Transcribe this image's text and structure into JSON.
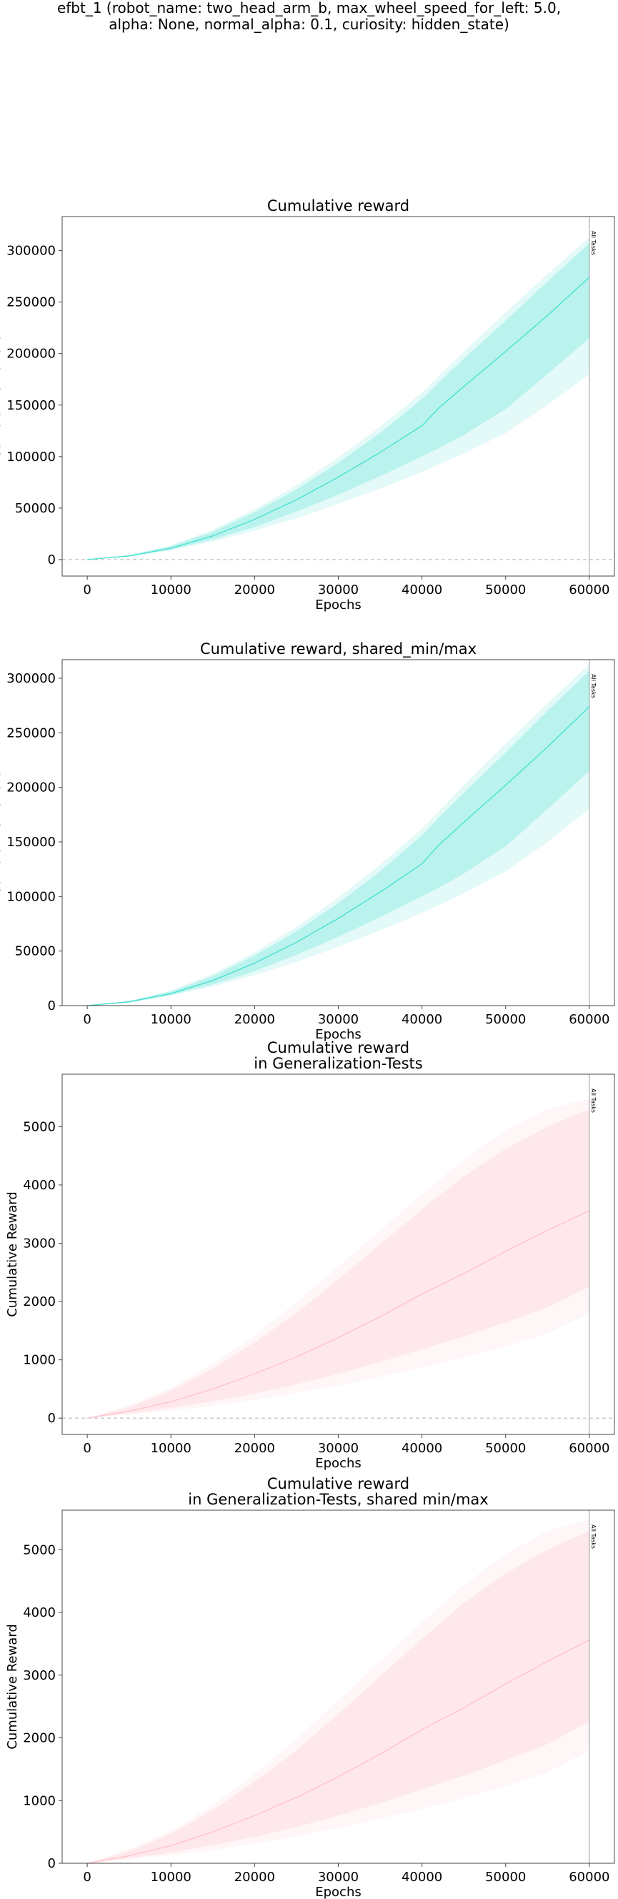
{
  "page": {
    "title_lines": [
      "efbt_1 (robot_name: two_head_arm_b, max_wheel_speed_for_left: 5.0,",
      "alpha: None, normal_alpha: 0.1, curiosity: hidden_state)"
    ]
  },
  "chart_data": [
    {
      "type": "line",
      "title_lines": [
        "Cumulative reward"
      ],
      "xlabel": "Epochs",
      "ylabel": "Cumulative Reward",
      "xlim": [
        -3000,
        63000
      ],
      "ylim": [
        -16000,
        333000
      ],
      "xticks": [
        0,
        10000,
        20000,
        30000,
        40000,
        50000,
        60000
      ],
      "yticks": [
        0,
        50000,
        100000,
        150000,
        200000,
        250000,
        300000
      ],
      "zero_line": true,
      "vline": {
        "x": 60000,
        "label": "All Tasks"
      },
      "color": "#40e0d0",
      "x": [
        0,
        5000,
        10000,
        15000,
        20000,
        25000,
        30000,
        35000,
        40000,
        42000,
        45000,
        50000,
        55000,
        60000
      ],
      "series": [
        {
          "role": "mean",
          "values": [
            0,
            3500,
            11000,
            23000,
            39000,
            58000,
            80000,
            104000,
            130000,
            147000,
            168000,
            202000,
            237000,
            274000
          ]
        },
        {
          "role": "band_inner_upper",
          "values": [
            0,
            4200,
            13000,
            27000,
            46000,
            68000,
            94000,
            123000,
            156000,
            172000,
            195000,
            232000,
            270000,
            307000
          ]
        },
        {
          "role": "band_inner_lower",
          "values": [
            0,
            2900,
            9800,
            19500,
            31500,
            46500,
            63000,
            81000,
            100000,
            108000,
            121000,
            146000,
            180000,
            215000
          ]
        },
        {
          "role": "band_outer_upper",
          "values": [
            0,
            4400,
            13800,
            29000,
            49000,
            72000,
            99000,
            129000,
            162000,
            178000,
            202000,
            240000,
            277000,
            313000
          ]
        },
        {
          "role": "band_outer_lower",
          "values": [
            0,
            2700,
            9000,
            17500,
            28000,
            40000,
            54000,
            69000,
            85000,
            92000,
            103000,
            123000,
            150000,
            180000
          ]
        }
      ]
    },
    {
      "type": "line",
      "title_lines": [
        "Cumulative reward, shared_min/max"
      ],
      "xlabel": "Epochs",
      "ylabel": "Cumulative Reward",
      "xlim": [
        -3000,
        63000
      ],
      "ylim": [
        0,
        317000
      ],
      "xticks": [
        0,
        10000,
        20000,
        30000,
        40000,
        50000,
        60000
      ],
      "yticks": [
        0,
        50000,
        100000,
        150000,
        200000,
        250000,
        300000
      ],
      "zero_line": false,
      "vline": {
        "x": 60000,
        "label": "All Tasks"
      },
      "color": "#40e0d0",
      "x": [
        0,
        5000,
        10000,
        15000,
        20000,
        25000,
        30000,
        35000,
        40000,
        42000,
        45000,
        50000,
        55000,
        60000
      ],
      "series": [
        {
          "role": "mean",
          "values": [
            0,
            3500,
            11000,
            23000,
            39000,
            58000,
            80000,
            104000,
            130000,
            147000,
            168000,
            202000,
            237000,
            274000
          ]
        },
        {
          "role": "band_inner_upper",
          "values": [
            0,
            4200,
            13000,
            27000,
            46000,
            68000,
            94000,
            123000,
            156000,
            172000,
            195000,
            232000,
            270000,
            307000
          ]
        },
        {
          "role": "band_inner_lower",
          "values": [
            0,
            2900,
            9800,
            19500,
            31500,
            46500,
            63000,
            81000,
            100000,
            108000,
            121000,
            146000,
            180000,
            215000
          ]
        },
        {
          "role": "band_outer_upper",
          "values": [
            0,
            4400,
            13800,
            29000,
            49000,
            72000,
            99000,
            129000,
            162000,
            178000,
            202000,
            240000,
            277000,
            313000
          ]
        },
        {
          "role": "band_outer_lower",
          "values": [
            0,
            2700,
            9000,
            17500,
            28000,
            40000,
            54000,
            69000,
            85000,
            92000,
            103000,
            123000,
            150000,
            180000
          ]
        }
      ]
    },
    {
      "type": "line",
      "title_lines": [
        "Cumulative reward",
        "in Generalization-Tests"
      ],
      "xlabel": "Epochs",
      "ylabel": "Cumulative Reward",
      "xlim": [
        -3000,
        63000
      ],
      "ylim": [
        -280,
        5900
      ],
      "xticks": [
        0,
        10000,
        20000,
        30000,
        40000,
        50000,
        60000
      ],
      "yticks": [
        0,
        1000,
        2000,
        3000,
        4000,
        5000
      ],
      "zero_line": true,
      "vline": {
        "x": 60000,
        "label": "All Tasks"
      },
      "color": "#ffc0cb",
      "x": [
        0,
        5000,
        10000,
        15000,
        20000,
        25000,
        30000,
        35000,
        40000,
        45000,
        50000,
        55000,
        60000
      ],
      "series": [
        {
          "role": "mean",
          "values": [
            0,
            120,
            280,
            500,
            760,
            1050,
            1380,
            1740,
            2130,
            2480,
            2860,
            3220,
            3560
          ]
        },
        {
          "role": "band_inner_upper",
          "values": [
            0,
            190,
            470,
            850,
            1300,
            1800,
            2380,
            2980,
            3580,
            4150,
            4620,
            5000,
            5300
          ]
        },
        {
          "role": "band_inner_lower",
          "values": [
            0,
            80,
            170,
            290,
            420,
            580,
            760,
            960,
            1180,
            1400,
            1640,
            1900,
            2260
          ]
        },
        {
          "role": "band_outer_upper",
          "values": [
            0,
            220,
            520,
            930,
            1420,
            1980,
            2600,
            3220,
            3840,
            4430,
            4930,
            5300,
            5480
          ]
        },
        {
          "role": "band_outer_lower",
          "values": [
            0,
            60,
            130,
            210,
            310,
            430,
            560,
            710,
            870,
            1040,
            1230,
            1450,
            1800
          ]
        }
      ]
    },
    {
      "type": "line",
      "title_lines": [
        "Cumulative reward",
        "in Generalization-Tests, shared min/max"
      ],
      "xlabel": "Epochs",
      "ylabel": "Cumulative Reward",
      "xlim": [
        -3000,
        63000
      ],
      "ylim": [
        0,
        5630
      ],
      "xticks": [
        0,
        10000,
        20000,
        30000,
        40000,
        50000,
        60000
      ],
      "yticks": [
        0,
        1000,
        2000,
        3000,
        4000,
        5000
      ],
      "zero_line": false,
      "vline": {
        "x": 60000,
        "label": "All Tasks"
      },
      "color": "#ffc0cb",
      "x": [
        0,
        5000,
        10000,
        15000,
        20000,
        25000,
        30000,
        35000,
        40000,
        45000,
        50000,
        55000,
        60000
      ],
      "series": [
        {
          "role": "mean",
          "values": [
            0,
            120,
            280,
            500,
            760,
            1050,
            1380,
            1740,
            2130,
            2480,
            2860,
            3220,
            3560
          ]
        },
        {
          "role": "band_inner_upper",
          "values": [
            0,
            190,
            470,
            850,
            1300,
            1800,
            2380,
            2980,
            3580,
            4150,
            4620,
            5000,
            5300
          ]
        },
        {
          "role": "band_inner_lower",
          "values": [
            0,
            80,
            170,
            290,
            420,
            580,
            760,
            960,
            1180,
            1400,
            1640,
            1900,
            2260
          ]
        },
        {
          "role": "band_outer_upper",
          "values": [
            0,
            220,
            520,
            930,
            1420,
            1980,
            2600,
            3220,
            3840,
            4430,
            4930,
            5300,
            5480
          ]
        },
        {
          "role": "band_outer_lower",
          "values": [
            0,
            60,
            130,
            210,
            310,
            430,
            560,
            710,
            870,
            1040,
            1230,
            1450,
            1800
          ]
        }
      ]
    }
  ]
}
